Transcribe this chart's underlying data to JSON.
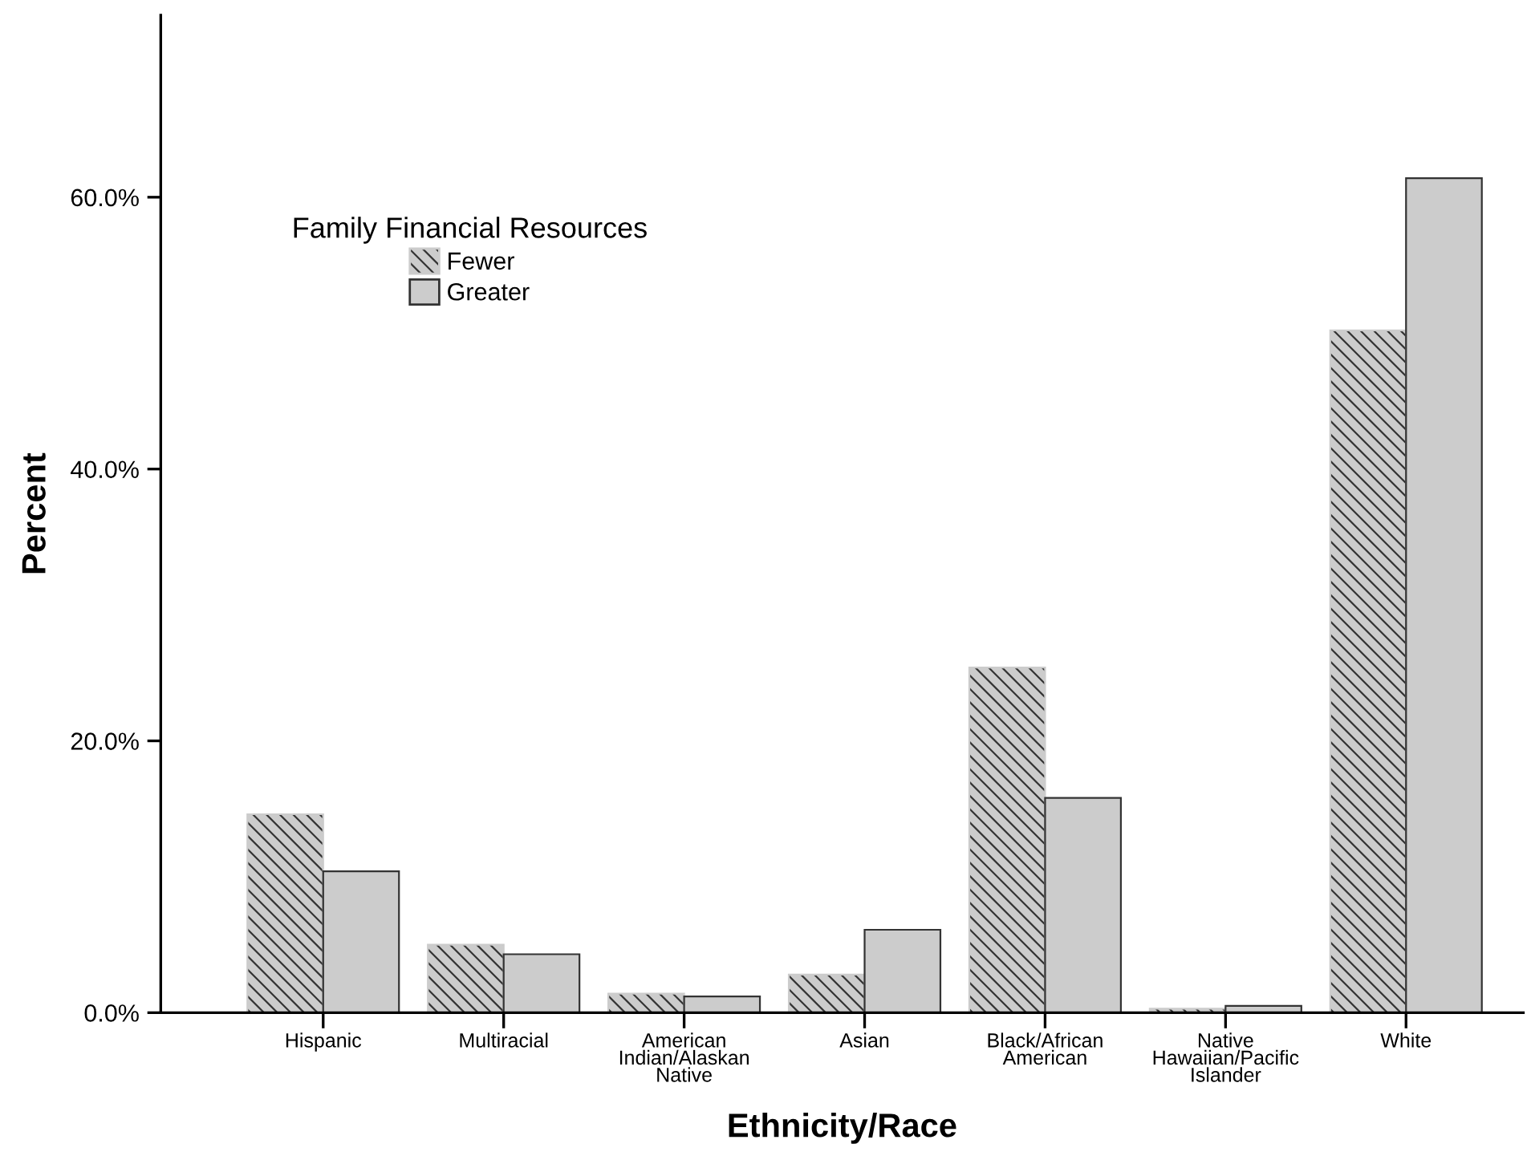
{
  "chart_data": {
    "type": "bar",
    "xlabel": "Ethnicity/Race",
    "ylabel": "Percent",
    "legend_title": "Family Financial Resources",
    "categories": [
      "Hispanic",
      "Multiracial",
      "American\nIndian/Alaskan\nNative",
      "Asian",
      "Black/African\nAmerican",
      "Native\nHawaiian/Pacific\nIslander",
      "White"
    ],
    "series": [
      {
        "name": "Fewer",
        "color": "#cccccc",
        "values": [
          14.6,
          5.0,
          1.4,
          2.8,
          25.4,
          0.3,
          50.2
        ]
      },
      {
        "name": "Greater",
        "color": "#cccccc",
        "values": [
          10.4,
          4.3,
          1.2,
          6.1,
          15.8,
          0.5,
          61.4
        ]
      }
    ],
    "ylim": [
      0,
      73.4
    ],
    "yticks": [
      {
        "value": 0,
        "label": "0.0%"
      },
      {
        "value": 20,
        "label": "20.0%"
      },
      {
        "value": 40,
        "label": "40.0%"
      },
      {
        "value": 60,
        "label": "60.0%"
      }
    ],
    "grid": false,
    "legend": "top left"
  }
}
